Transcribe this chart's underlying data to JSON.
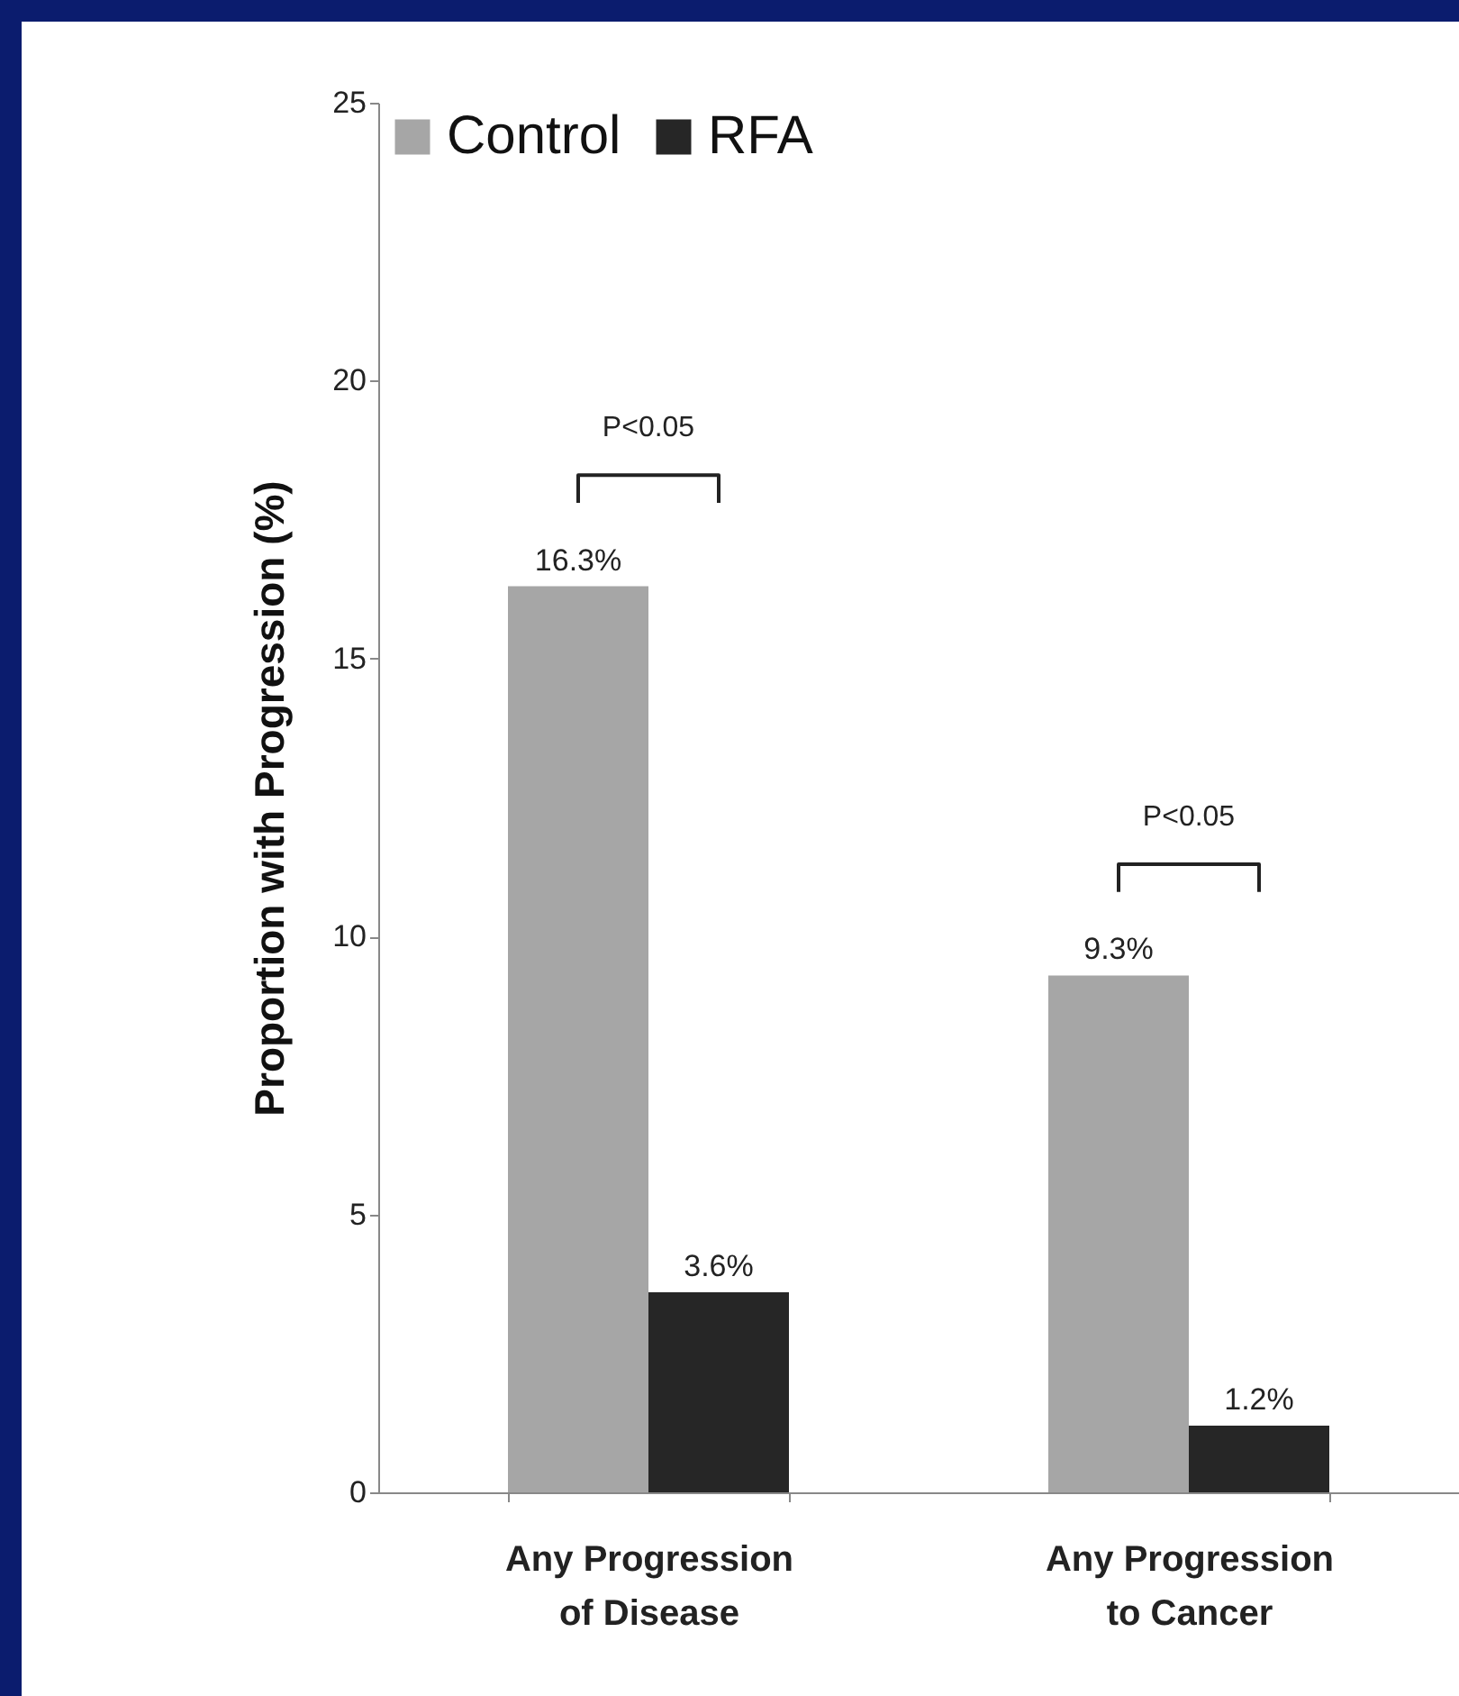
{
  "chart_data": {
    "type": "bar",
    "ylabel": "Proportion with Progression (%)",
    "categories": [
      "Any Progression of Disease",
      "Any Progression to Cancer"
    ],
    "series": [
      {
        "name": "Control",
        "color": "#a6a6a6",
        "values": [
          16.3,
          9.3
        ],
        "value_labels": [
          "16.3%",
          "9.3%"
        ]
      },
      {
        "name": "RFA",
        "color": "#262626",
        "values": [
          3.6,
          1.2
        ],
        "value_labels": [
          "3.6%",
          "1.2%"
        ]
      }
    ],
    "ylim": [
      0,
      25
    ],
    "yticks": [
      0,
      5,
      10,
      15,
      20,
      25
    ],
    "grid": false,
    "legend": "top left",
    "annotations": [
      "P<0.05",
      "P<0.05"
    ]
  }
}
